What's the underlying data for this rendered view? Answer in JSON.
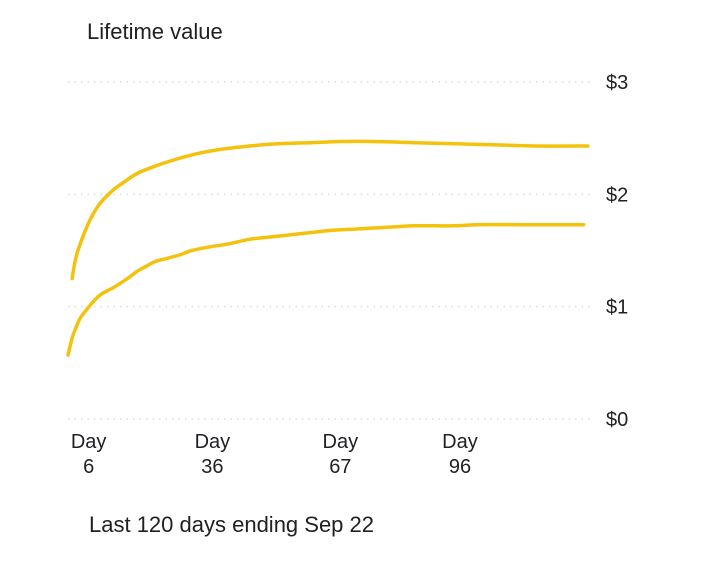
{
  "card": {
    "title": "Lifetime value",
    "footer": "Last 120 days ending Sep 22"
  },
  "chart_data": {
    "type": "line",
    "title": "Lifetime value",
    "xlabel": "",
    "ylabel": "",
    "x_ticks": [
      {
        "day": 6,
        "line1": "Day",
        "line2": "6"
      },
      {
        "day": 36,
        "line1": "Day",
        "line2": "36"
      },
      {
        "day": 67,
        "line1": "Day",
        "line2": "67"
      },
      {
        "day": 96,
        "line1": "Day",
        "line2": "96"
      }
    ],
    "y_ticks": [
      "$0",
      "$1",
      "$2",
      "$3"
    ],
    "xlim": [
      1,
      128
    ],
    "ylim": [
      0,
      3
    ],
    "grid": true,
    "line_color": "#f4c20d",
    "series": [
      {
        "x": [
          2,
          3,
          5,
          7,
          9,
          12,
          15,
          18,
          22,
          27,
          32,
          38,
          45,
          52,
          60,
          67,
          75,
          85,
          95,
          105,
          115,
          127
        ],
        "values": [
          1.25,
          1.45,
          1.66,
          1.82,
          1.93,
          2.04,
          2.12,
          2.19,
          2.25,
          2.31,
          2.36,
          2.4,
          2.43,
          2.45,
          2.46,
          2.47,
          2.47,
          2.46,
          2.45,
          2.44,
          2.43,
          2.43
        ]
      },
      {
        "x": [
          1,
          2,
          3,
          4,
          5,
          7,
          9,
          12,
          15,
          18,
          20,
          22,
          25,
          28,
          31,
          35,
          40,
          45,
          50,
          55,
          60,
          65,
          70,
          75,
          80,
          85,
          90,
          95,
          100,
          110,
          120,
          126
        ],
        "values": [
          0.57,
          0.72,
          0.82,
          0.9,
          0.95,
          1.04,
          1.11,
          1.17,
          1.24,
          1.32,
          1.36,
          1.4,
          1.43,
          1.46,
          1.5,
          1.53,
          1.56,
          1.6,
          1.62,
          1.64,
          1.66,
          1.68,
          1.69,
          1.7,
          1.71,
          1.72,
          1.72,
          1.72,
          1.73,
          1.73,
          1.73,
          1.73
        ]
      }
    ]
  }
}
